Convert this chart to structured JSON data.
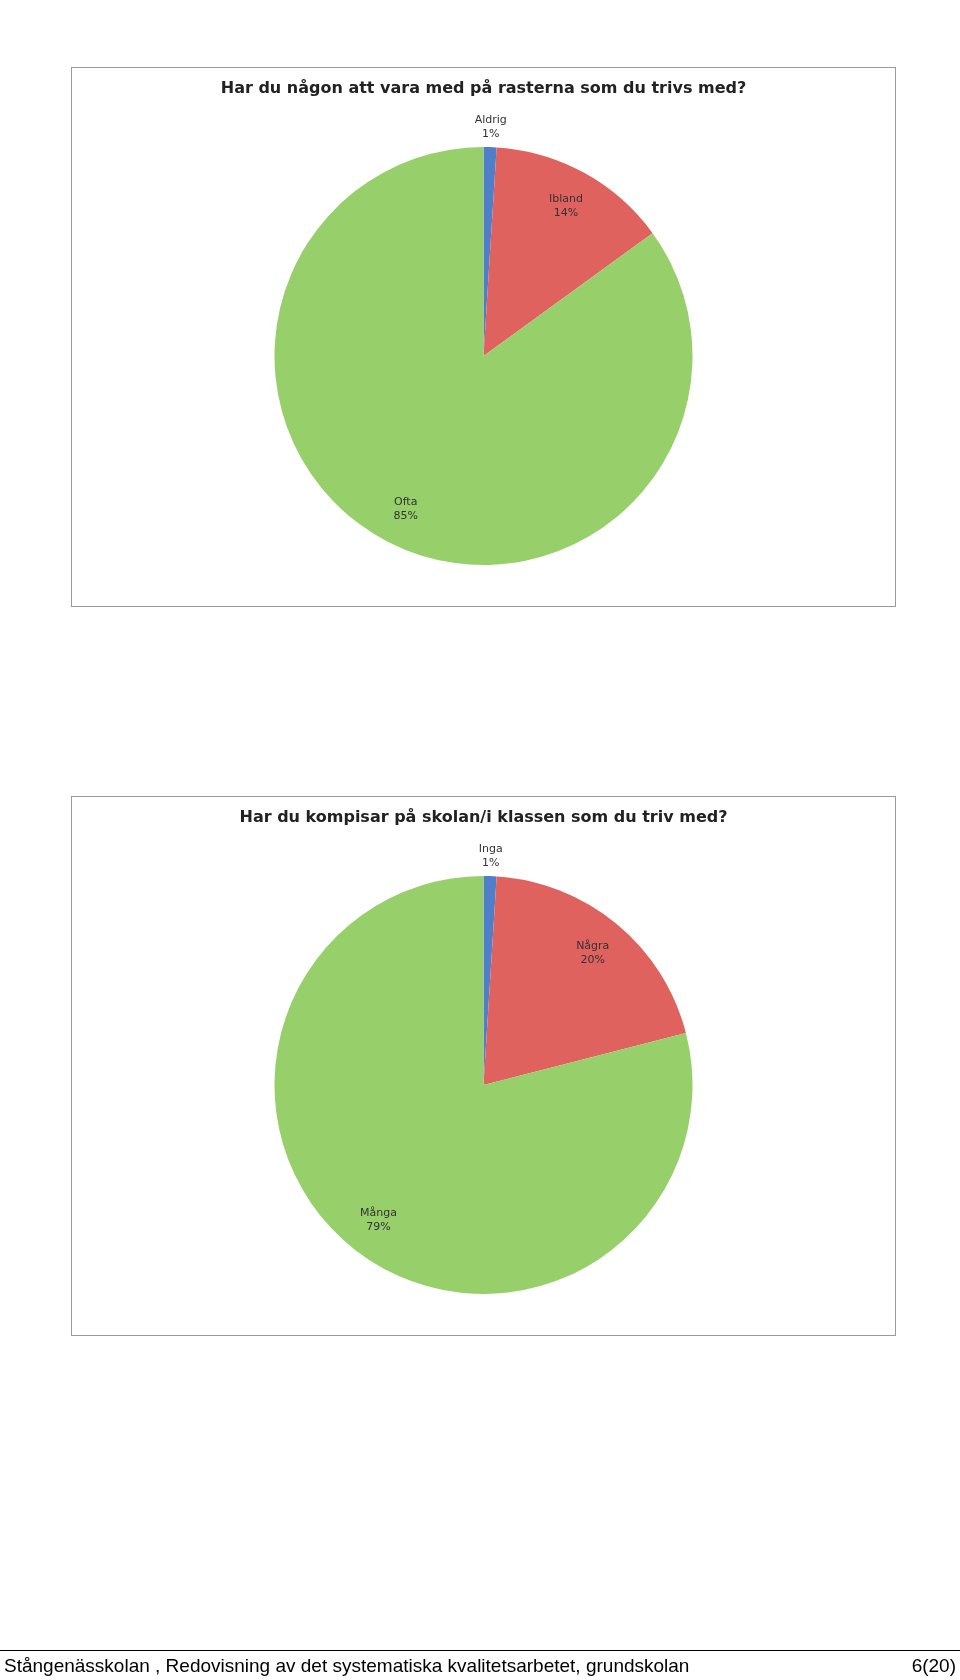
{
  "chart_data": [
    {
      "type": "pie",
      "title": "Har du någon att vara med på rasterna som du trivs med?",
      "categories": [
        "Aldrig",
        "Ibland",
        "Ofta"
      ],
      "values": [
        1,
        14,
        85
      ],
      "value_labels": [
        "1%",
        "14%",
        "85%"
      ],
      "colors": [
        "#4f7fc8",
        "#e0625f",
        "#97cf6a"
      ],
      "legend": false
    },
    {
      "type": "pie",
      "title": "Har du kompisar på skolan/i klassen som du triv med?",
      "categories": [
        "Inga",
        "Några",
        "Många"
      ],
      "values": [
        1,
        20,
        79
      ],
      "value_labels": [
        "1%",
        "20%",
        "79%"
      ],
      "colors": [
        "#4f7fc8",
        "#e0625f",
        "#97cf6a"
      ],
      "legend": false,
      "annotations": [
        "Stångenässkolan , Redovisning av det systematiska kvalitetsarbetet, grundskolan",
        "6(20)"
      ]
    }
  ]
}
